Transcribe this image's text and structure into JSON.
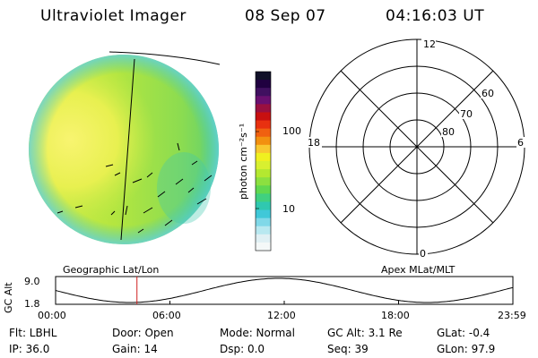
{
  "header": {
    "instrument": "Ultraviolet Imager",
    "date": "08 Sep 07",
    "time": "04:16:03 UT"
  },
  "colorbar": {
    "unit_label": "photon cm⁻²s⁻¹",
    "tick_labels": [
      "100",
      "10"
    ],
    "colors": [
      "#101028",
      "#200040",
      "#401060",
      "#6a1070",
      "#9a1040",
      "#c81010",
      "#e83010",
      "#f06010",
      "#f29010",
      "#f8c830",
      "#f0f020",
      "#d8f030",
      "#b4e830",
      "#8ce040",
      "#60d850",
      "#40d080",
      "#30c8b0",
      "#40c8d8",
      "#80d8e8",
      "#b8e8f0",
      "#e0f0f4",
      "#f4f8f8"
    ]
  },
  "polar_plot": {
    "labels": {
      "noon": "12",
      "midnight": "0",
      "dusk": "18",
      "dawn": "6",
      "lat60": "60",
      "lat70": "70",
      "lat80": "80"
    }
  },
  "altitude_panel": {
    "ylabel": "GC Alt",
    "ymax": "9.0",
    "ymin": "1.8",
    "left_title": "Geographic Lat/Lon",
    "right_title": "Apex MLat/MLT",
    "xticks": [
      "00:00",
      "06:00",
      "12:00",
      "18:00",
      "23:59"
    ],
    "current_time_hours": 4.27,
    "marker_color": "#d02020"
  },
  "status": {
    "filter": "Flt: LBHL",
    "ip": "IP: 36.0",
    "door": "Door: Open",
    "gain": "Gain: 14",
    "mode": "Mode: Normal",
    "dsp": "Dsp:     0.0",
    "gc_alt": "GC Alt: 3.1 Re",
    "seq": "Seq: 39",
    "glat": "GLat:   -0.4",
    "glon": "GLon:   97.9"
  }
}
